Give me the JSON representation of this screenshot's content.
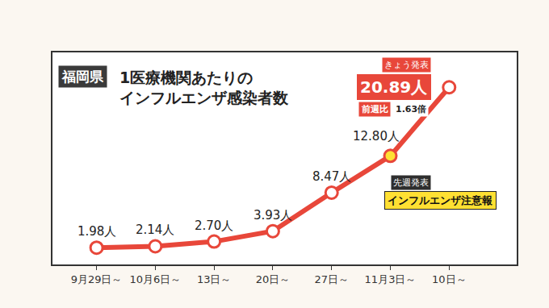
{
  "chart_data": {
    "type": "line",
    "title": [
      "1医療機関あたりの",
      "インフルエンザ感染者数"
    ],
    "categories": [
      "9月29日～",
      "10月6日～",
      "13日～",
      "20日～",
      "27日～",
      "11月3日～",
      "10日～"
    ],
    "values": [
      1.98,
      2.14,
      2.7,
      3.93,
      8.47,
      12.8,
      20.89
    ],
    "value_labels": [
      "1.98人",
      "2.14人",
      "2.70人",
      "3.93人",
      "8.47人",
      "12.80人",
      "20.89人"
    ],
    "data_labels": true,
    "color": "#e8473a",
    "colors": [
      "#ffffff",
      "#ffffff",
      "#ffffff",
      "#ffffff",
      "#ffffff",
      "#ffe033",
      "#ffffff"
    ],
    "marker": "circle",
    "line_style": "solid",
    "ylim": [
      0,
      25
    ],
    "yticks": [],
    "tick_labels": "x",
    "grid": false,
    "annotations": [
      "福岡県",
      "きょう発表",
      "前週比",
      "1.63倍",
      "先週発表",
      "インフルエンザ注意報"
    ]
  }
}
